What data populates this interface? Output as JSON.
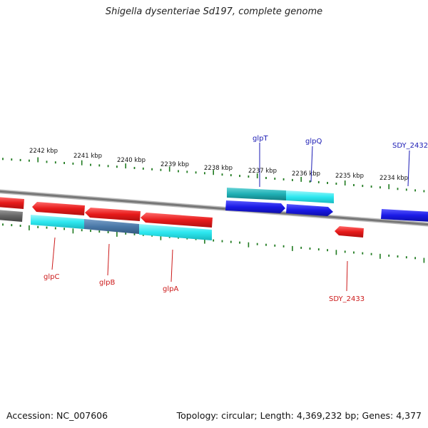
{
  "title": "Shigella dysenteriae Sd197, complete genome",
  "footer": {
    "accession": "Accession: NC_007606",
    "summary": "Topology: circular; Length: 4,369,232 bp; Genes: 4,377"
  },
  "colors": {
    "backbone": "#7a7a7a",
    "scale_ticks": "#1f7a1f",
    "forward_gene": "#1a1ae6",
    "reverse_gene": "#e61a1a",
    "forward_cds": "#23c0c8",
    "reverse_cds": "#2ee8f0",
    "pseudo_gray": "#666666",
    "forward_label": "#1a1ab4",
    "reverse_label": "#cc1a1a"
  },
  "scale": {
    "ticks": [
      {
        "label": "2242 kbp"
      },
      {
        "label": "2241 kbp"
      },
      {
        "label": "2240 kbp"
      },
      {
        "label": "2239 kbp"
      },
      {
        "label": "2238 kbp"
      },
      {
        "label": "2237 kbp"
      },
      {
        "label": "2236 kbp"
      },
      {
        "label": "2235 kbp"
      },
      {
        "label": "2234 kbp"
      }
    ]
  },
  "genes": {
    "forward": [
      {
        "name": "glpT"
      },
      {
        "name": "glpQ"
      },
      {
        "name": "SDY_2432"
      }
    ],
    "reverse": [
      {
        "name": "glpC"
      },
      {
        "name": "glpB"
      },
      {
        "name": "glpA"
      },
      {
        "name": "SDY_2433"
      }
    ]
  }
}
